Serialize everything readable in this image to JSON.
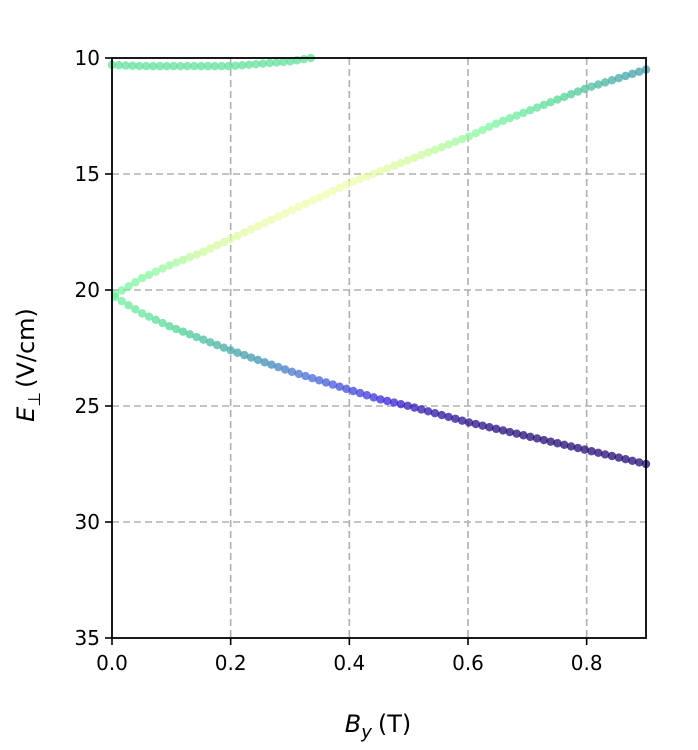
{
  "chart_data": {
    "type": "scatter",
    "xlabel": {
      "main": "B",
      "sub": "y",
      "unit": "(T)"
    },
    "ylabel": {
      "main": "E",
      "sub": "⊥",
      "unit": "(V/cm)"
    },
    "xlim": [
      0,
      0.9
    ],
    "ylim": [
      35,
      10
    ],
    "y_inverted": true,
    "grid": true,
    "x_ticks": [
      0.0,
      0.2,
      0.4,
      0.6,
      0.8
    ],
    "x_tick_labels": [
      "0.0",
      "0.2",
      "0.4",
      "0.6",
      "0.8"
    ],
    "y_ticks": [
      10,
      15,
      20,
      25,
      30,
      35
    ],
    "y_tick_labels": [
      "10",
      "15",
      "20",
      "25",
      "30",
      "35"
    ],
    "colormap": {
      "description": "point color encodes a third quantity (no colorbar shown)",
      "stops": [
        "#1a0070",
        "#2f1ad8",
        "#3f63d6",
        "#3a9aa8",
        "#4cd491",
        "#78f5a0",
        "#d0fa9a",
        "#f4fcb0"
      ]
    },
    "point_color": "#4cd491",
    "series": [
      {
        "x": [
          0.0,
          0.05,
          0.1,
          0.15,
          0.2,
          0.25,
          0.3,
          0.335
        ],
        "y": [
          10.3,
          10.35,
          10.35,
          10.35,
          10.35,
          10.25,
          10.15,
          10.0
        ],
        "color_value": [
          0.62,
          0.62,
          0.62,
          0.62,
          0.62,
          0.62,
          0.62,
          0.62
        ]
      },
      {
        "x": [
          0.005,
          0.05,
          0.1,
          0.15,
          0.2,
          0.25,
          0.3,
          0.35,
          0.4,
          0.45,
          0.5,
          0.55,
          0.6,
          0.65,
          0.7,
          0.75,
          0.8,
          0.85,
          0.9
        ],
        "y": [
          20.2,
          19.5,
          18.9,
          18.4,
          17.8,
          17.2,
          16.6,
          16.0,
          15.4,
          14.9,
          14.4,
          13.9,
          13.4,
          12.8,
          12.3,
          11.8,
          11.3,
          10.9,
          10.5
        ],
        "color_value": [
          0.7,
          0.72,
          0.78,
          0.85,
          0.9,
          0.95,
          0.97,
          0.98,
          0.97,
          0.94,
          0.88,
          0.82,
          0.76,
          0.7,
          0.64,
          0.58,
          0.52,
          0.46,
          0.42
        ]
      },
      {
        "x": [
          0.005,
          0.05,
          0.1,
          0.15,
          0.2,
          0.25,
          0.3,
          0.35,
          0.4,
          0.45,
          0.5,
          0.55,
          0.6,
          0.65,
          0.7,
          0.75,
          0.8,
          0.85,
          0.9
        ],
        "y": [
          20.3,
          21.0,
          21.6,
          22.1,
          22.6,
          23.05,
          23.5,
          23.9,
          24.3,
          24.7,
          25.0,
          25.35,
          25.7,
          26.0,
          26.3,
          26.6,
          26.9,
          27.2,
          27.5
        ],
        "color_value": [
          0.68,
          0.64,
          0.58,
          0.52,
          0.45,
          0.4,
          0.33,
          0.27,
          0.22,
          0.16,
          0.1,
          0.06,
          0.03,
          0.01,
          0.0,
          0.0,
          0.0,
          0.0,
          0.0
        ]
      }
    ]
  }
}
